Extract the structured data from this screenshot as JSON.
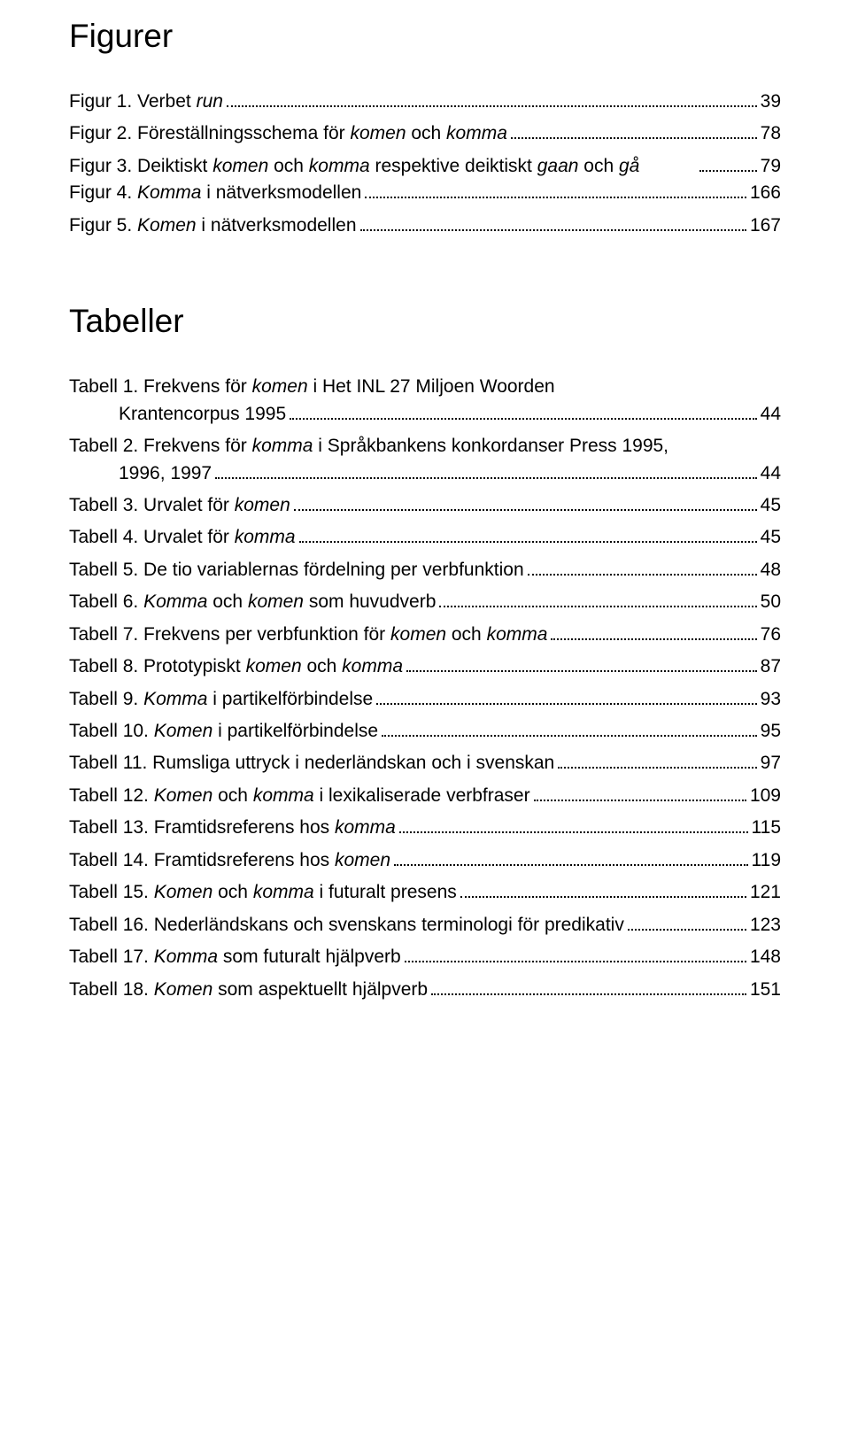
{
  "headings": {
    "figurer": "Figurer",
    "tabeller": "Tabeller"
  },
  "figures": [
    {
      "prefix": "Figur 1. Verbet ",
      "italic": "run",
      "suffix": "",
      "page": "39"
    },
    {
      "prefix": "Figur 2. Föreställningsschema för ",
      "italic": "komen",
      "suffix_plain": " och ",
      "italic2": "komma",
      "suffix": "",
      "page": "78"
    },
    {
      "prefix": "Figur 3. Deiktiskt ",
      "italic": "komen",
      "suffix_plain": " och ",
      "italic2": "komma",
      "suffix_plain2": " respektive deiktiskt ",
      "italic3": "gaan",
      "suffix_plain3": " och ",
      "italic4": "gå",
      "page": "79",
      "wrap": true,
      "break_after": "italic2"
    },
    {
      "prefix": "Figur 4. ",
      "italic": "Komma",
      "suffix": " i nätverksmodellen",
      "page": "166"
    },
    {
      "prefix": "Figur 5. ",
      "italic": "Komen",
      "suffix": " i nätverksmodellen",
      "page": "167"
    }
  ],
  "tables": [
    {
      "line1": "Tabell 1. Frekvens för <i>komen</i> i Het INL 27 Miljoen Woorden",
      "line2": "Krantencorpus 1995",
      "page": "44",
      "wrap": true
    },
    {
      "line1": "Tabell 2. Frekvens för <i>komma</i> i Språkbankens konkordanser Press 1995,",
      "line2": "1996, 1997",
      "page": "44",
      "wrap": true
    },
    {
      "text": "Tabell 3. Urvalet för <i>komen</i>",
      "page": "45"
    },
    {
      "text": "Tabell 4. Urvalet för <i>komma</i>",
      "page": "45"
    },
    {
      "text": "Tabell 5. De tio variablernas fördelning per verbfunktion",
      "page": "48"
    },
    {
      "text": "Tabell 6. <i>Komma</i> och <i>komen</i> som huvudverb",
      "page": "50"
    },
    {
      "text": "Tabell 7. Frekvens per verbfunktion för <i>komen</i> och <i>komma</i>",
      "page": "76"
    },
    {
      "text": "Tabell 8. Prototypiskt <i>komen</i> och <i>komma</i>",
      "page": "87"
    },
    {
      "text": "Tabell 9. <i>Komma</i> i partikelförbindelse",
      "page": "93"
    },
    {
      "text": "Tabell 10. <i>Komen</i> i partikelförbindelse",
      "page": "95"
    },
    {
      "text": "Tabell 11. Rumsliga uttryck i nederländskan och i svenskan",
      "page": "97"
    },
    {
      "text": "Tabell 12. <i>Komen</i> och <i>komma</i> i lexikaliserade verbfraser",
      "page": "109"
    },
    {
      "text": "Tabell 13. Framtidsreferens hos <i>komma</i>",
      "page": "115"
    },
    {
      "text": "Tabell 14. Framtidsreferens hos <i>komen</i>",
      "page": "119"
    },
    {
      "text": "Tabell 15. <i>Komen</i> och <i>komma</i> i futuralt presens",
      "page": "121"
    },
    {
      "text": "Tabell 16. Nederländskans och svenskans terminologi för predikativ",
      "page": "123"
    },
    {
      "text": "Tabell 17. <i>Komma</i> som futuralt hjälpverb",
      "page": "148"
    },
    {
      "text": "Tabell 18. <i>Komen</i> som aspektuellt hjälpverb",
      "page": "151"
    }
  ]
}
